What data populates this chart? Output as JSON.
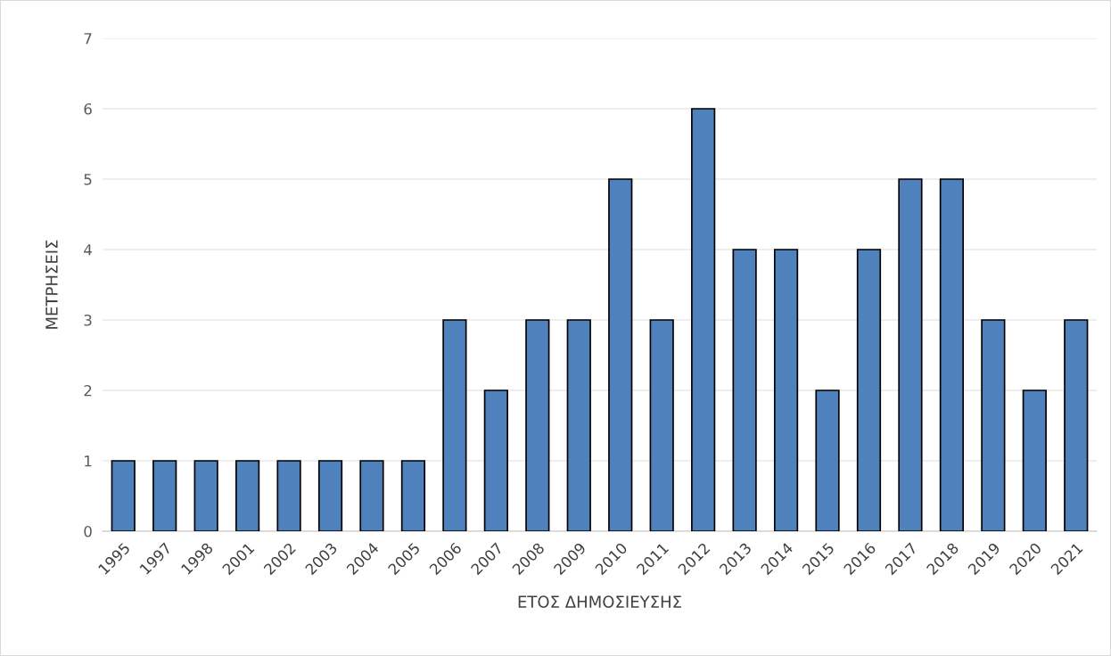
{
  "chart_data": {
    "type": "bar",
    "xlabel": "ΕΤΟΣ ΔΗΜΟΣΙΕΥΣΗΣ",
    "ylabel": "ΜΕΤΡΗΣΕΙΣ",
    "categories": [
      "1995",
      "1997",
      "1998",
      "2001",
      "2002",
      "2003",
      "2004",
      "2005",
      "2006",
      "2007",
      "2008",
      "2009",
      "2010",
      "2011",
      "2012",
      "2013",
      "2014",
      "2015",
      "2016",
      "2017",
      "2018",
      "2019",
      "2020",
      "2021"
    ],
    "values": [
      1,
      1,
      1,
      1,
      1,
      1,
      1,
      1,
      3,
      2,
      3,
      3,
      5,
      3,
      6,
      4,
      4,
      2,
      4,
      5,
      5,
      3,
      2,
      3
    ],
    "color": "#4f81bd",
    "ylim": [
      0,
      7
    ],
    "yticks": [
      0,
      1,
      2,
      3,
      4,
      5,
      6,
      7
    ],
    "grid": "y",
    "legend": false
  }
}
